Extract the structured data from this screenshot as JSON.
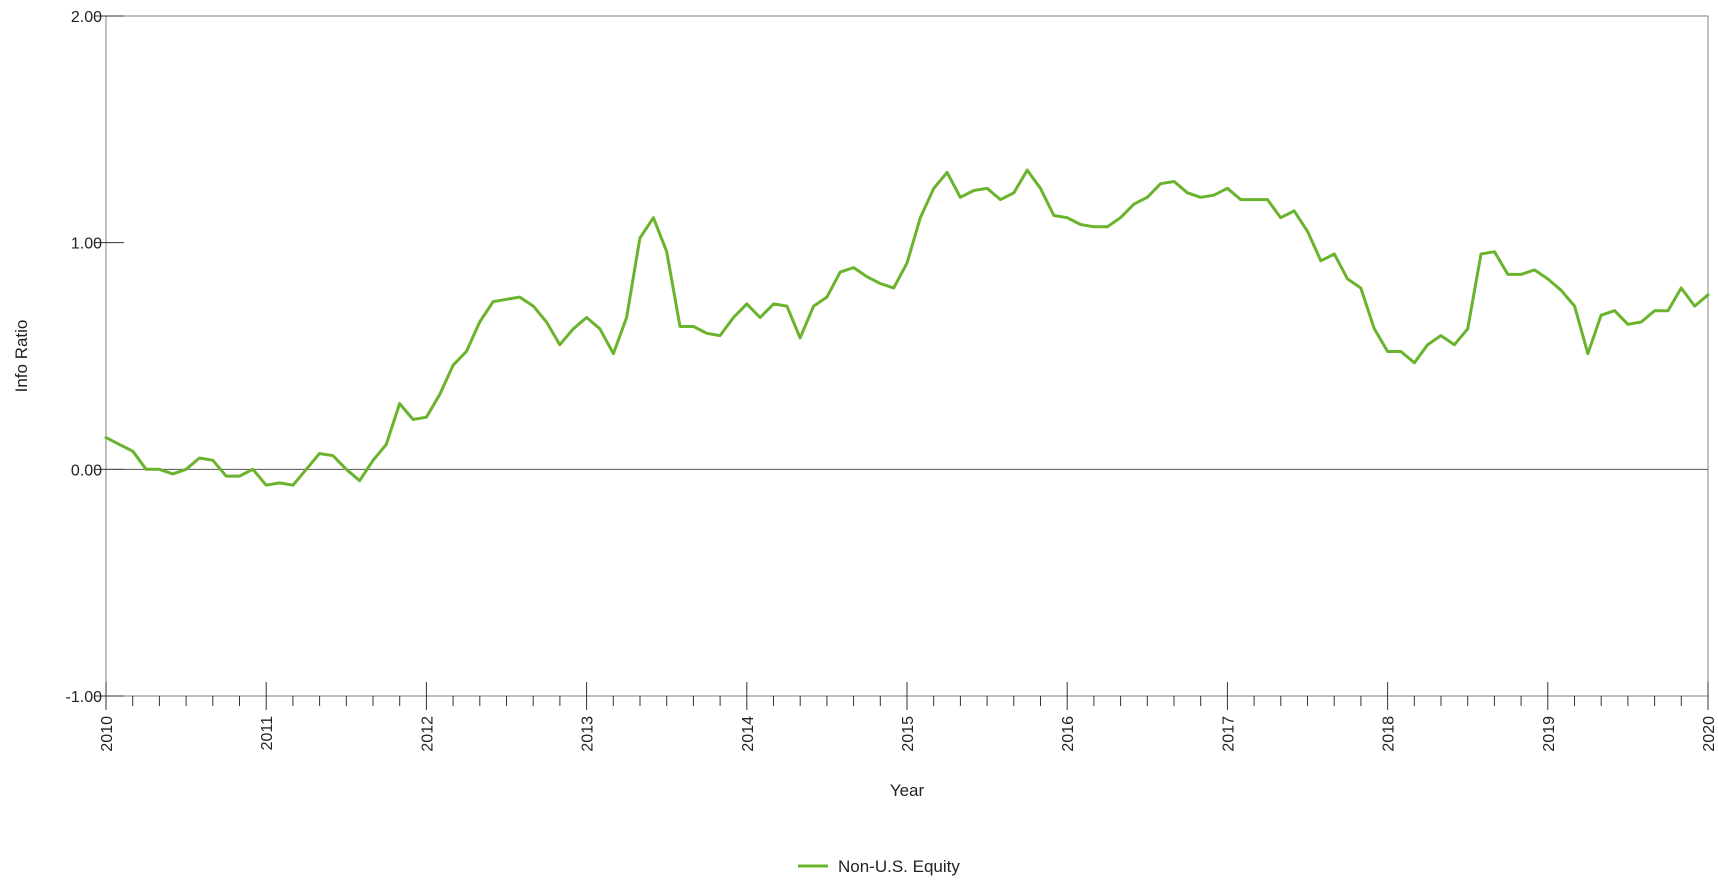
{
  "chart_data": {
    "type": "line",
    "title": "",
    "xlabel": "Year",
    "ylabel": "Info Ratio",
    "xlim": [
      2010,
      2020
    ],
    "ylim": [
      -1.0,
      2.0
    ],
    "y_ticks": [
      "-1.00",
      "0.00",
      "1.00",
      "2.00"
    ],
    "x_ticks": [
      "2010",
      "2011",
      "2012",
      "2013",
      "2014",
      "2015",
      "2016",
      "2017",
      "2018",
      "2019",
      "2020"
    ],
    "minor_ticks_per_year": 12,
    "grid": false,
    "zero_line": true,
    "legend_position": "bottom-center",
    "series": [
      {
        "name": "Non-U.S. Equity",
        "color": "#6ab42d",
        "x": [
          2010.0,
          2010.083,
          2010.167,
          2010.25,
          2010.333,
          2010.417,
          2010.5,
          2010.583,
          2010.667,
          2010.75,
          2010.833,
          2010.917,
          2011.0,
          2011.083,
          2011.167,
          2011.25,
          2011.333,
          2011.417,
          2011.5,
          2011.583,
          2011.667,
          2011.75,
          2011.833,
          2011.917,
          2012.0,
          2012.083,
          2012.167,
          2012.25,
          2012.333,
          2012.417,
          2012.5,
          2012.583,
          2012.667,
          2012.75,
          2012.833,
          2012.917,
          2013.0,
          2013.083,
          2013.167,
          2013.25,
          2013.333,
          2013.417,
          2013.5,
          2013.583,
          2013.667,
          2013.75,
          2013.833,
          2013.917,
          2014.0,
          2014.083,
          2014.167,
          2014.25,
          2014.333,
          2014.417,
          2014.5,
          2014.583,
          2014.667,
          2014.75,
          2014.833,
          2014.917,
          2015.0,
          2015.083,
          2015.167,
          2015.25,
          2015.333,
          2015.417,
          2015.5,
          2015.583,
          2015.667,
          2015.75,
          2015.833,
          2015.917,
          2016.0,
          2016.083,
          2016.167,
          2016.25,
          2016.333,
          2016.417,
          2016.5,
          2016.583,
          2016.667,
          2016.75,
          2016.833,
          2016.917,
          2017.0,
          2017.083,
          2017.167,
          2017.25,
          2017.333,
          2017.417,
          2017.5,
          2017.583,
          2017.667,
          2017.75,
          2017.833,
          2017.917,
          2018.0,
          2018.083,
          2018.167,
          2018.25,
          2018.333,
          2018.417,
          2018.5,
          2018.583,
          2018.667,
          2018.75,
          2018.833,
          2018.917,
          2019.0,
          2019.083,
          2019.167,
          2019.25,
          2019.333,
          2019.417,
          2019.5,
          2019.583,
          2019.667,
          2019.75,
          2019.833,
          2019.917,
          2020.0
        ],
        "values": [
          0.14,
          0.11,
          0.08,
          0.0,
          0.0,
          -0.02,
          0.0,
          0.05,
          0.04,
          -0.03,
          -0.03,
          0.0,
          -0.07,
          -0.06,
          -0.07,
          0.0,
          0.07,
          0.06,
          0.0,
          -0.05,
          0.04,
          0.11,
          0.29,
          0.22,
          0.23,
          0.33,
          0.46,
          0.52,
          0.65,
          0.74,
          0.75,
          0.76,
          0.72,
          0.65,
          0.55,
          0.62,
          0.67,
          0.62,
          0.51,
          0.67,
          1.02,
          1.11,
          0.96,
          0.63,
          0.63,
          0.6,
          0.59,
          0.67,
          0.73,
          0.67,
          0.73,
          0.72,
          0.58,
          0.72,
          0.76,
          0.87,
          0.89,
          0.85,
          0.82,
          0.8,
          0.91,
          1.11,
          1.24,
          1.31,
          1.2,
          1.23,
          1.24,
          1.19,
          1.22,
          1.32,
          1.24,
          1.12,
          1.11,
          1.08,
          1.07,
          1.07,
          1.11,
          1.17,
          1.2,
          1.26,
          1.27,
          1.22,
          1.2,
          1.21,
          1.24,
          1.19,
          1.19,
          1.19,
          1.11,
          1.14,
          1.05,
          0.92,
          0.95,
          0.84,
          0.8,
          0.62,
          0.52,
          0.52,
          0.47,
          0.55,
          0.59,
          0.55,
          0.62,
          0.95,
          0.96,
          0.86,
          0.86,
          0.88,
          0.84,
          0.79,
          0.72,
          0.51,
          0.68,
          0.7,
          0.64,
          0.65,
          0.7,
          0.7,
          0.8,
          0.72,
          0.77
        ]
      }
    ]
  }
}
